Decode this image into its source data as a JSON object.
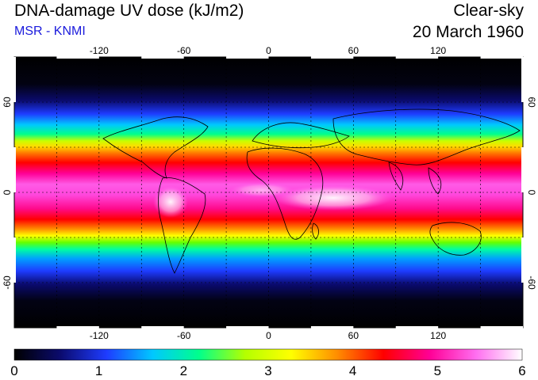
{
  "header": {
    "title": "DNA-damage UV dose (kJ/m2)",
    "credit": "MSR - KNMI",
    "condition": "Clear-sky",
    "date": "20 March 1960"
  },
  "map": {
    "lon_ticks": [
      {
        "value": -120,
        "label": "-120"
      },
      {
        "value": -60,
        "label": "-60"
      },
      {
        "value": 0,
        "label": "0"
      },
      {
        "value": 60,
        "label": "60"
      },
      {
        "value": 120,
        "label": "120"
      }
    ],
    "lat_ticks": [
      {
        "value": 60,
        "label": "60"
      },
      {
        "value": 0,
        "label": "0"
      },
      {
        "value": -60,
        "label": "-60"
      }
    ],
    "lon_range": [
      -180,
      180
    ],
    "lat_range": [
      -90,
      90
    ],
    "gridlines": [
      -150,
      -120,
      -90,
      -60,
      -30,
      0,
      30,
      60,
      90,
      120,
      150
    ],
    "lat_gridlines": [
      -60,
      -30,
      0,
      30,
      60
    ]
  },
  "colorbar": {
    "range": [
      0,
      6
    ],
    "labels": [
      "0",
      "1",
      "2",
      "3",
      "4",
      "5",
      "6"
    ],
    "colors": [
      "#000000",
      "#0b0b6e",
      "#1e3cff",
      "#00c8ff",
      "#00ff8c",
      "#b4ff00",
      "#ffff00",
      "#ff8c00",
      "#ff0000",
      "#ff0096",
      "#ff6ef0",
      "#ffffff"
    ]
  }
}
